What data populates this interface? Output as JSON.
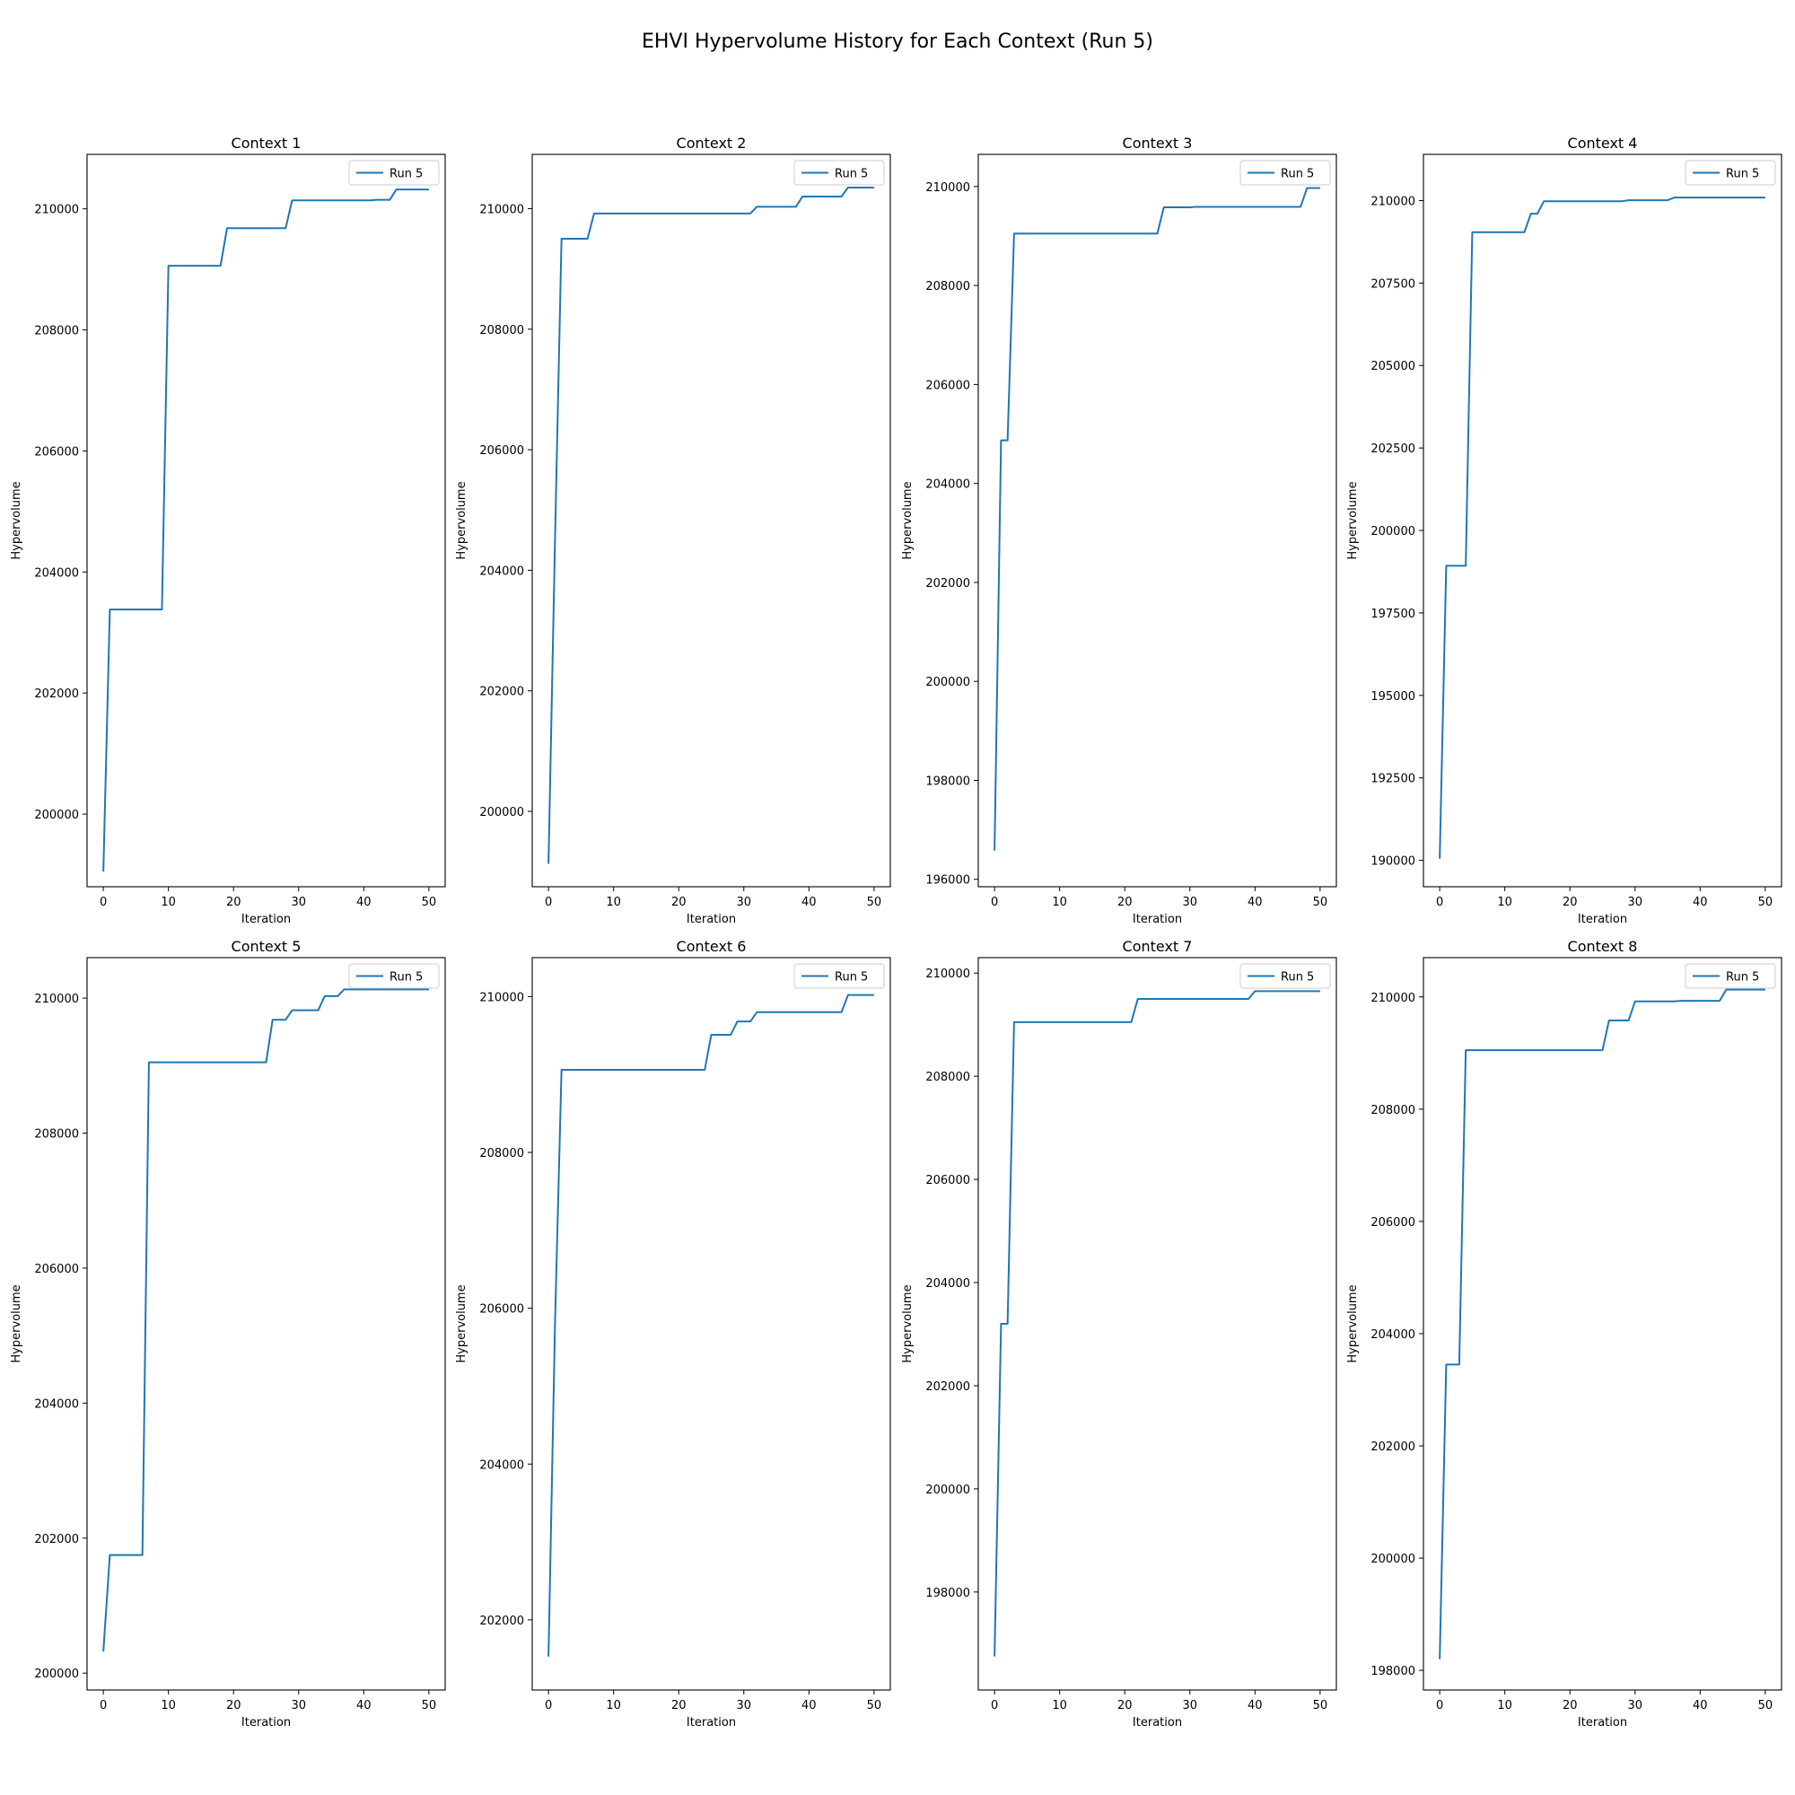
{
  "title": "EHVI Hypervolume History for Each Context (Run 5)",
  "colors": {
    "line": "#1f77b4",
    "axis": "#000000",
    "legend_border": "#cccccc"
  },
  "chart_data": [
    {
      "type": "line",
      "title": "Context 1",
      "xlabel": "Iteration",
      "ylabel": "Hypervolume",
      "xlim": [
        -2.5,
        52.5
      ],
      "ylim": [
        198800,
        210900
      ],
      "xticks": [
        0,
        10,
        20,
        30,
        40,
        50
      ],
      "yticks": [
        200000,
        202000,
        204000,
        206000,
        208000,
        210000
      ],
      "legend_position": "upper right",
      "series": [
        {
          "name": "Run 5",
          "points": [
            [
              0,
              199050
            ],
            [
              1,
              203380
            ],
            [
              9,
              203380
            ],
            [
              10,
              209060
            ],
            [
              18,
              209060
            ],
            [
              19,
              209680
            ],
            [
              28,
              209680
            ],
            [
              29,
              210140
            ],
            [
              41,
              210140
            ],
            [
              42,
              210150
            ],
            [
              44,
              210150
            ],
            [
              45,
              210320
            ],
            [
              50,
              210320
            ]
          ]
        }
      ]
    },
    {
      "type": "line",
      "title": "Context 2",
      "xlabel": "Iteration",
      "ylabel": "Hypervolume",
      "xlim": [
        -2.5,
        52.5
      ],
      "ylim": [
        198750,
        210900
      ],
      "xticks": [
        0,
        10,
        20,
        30,
        40,
        50
      ],
      "yticks": [
        200000,
        202000,
        204000,
        206000,
        208000,
        210000
      ],
      "legend_position": "upper right",
      "series": [
        {
          "name": "Run 5",
          "points": [
            [
              0,
              199130
            ],
            [
              1,
              204500
            ],
            [
              2,
              209500
            ],
            [
              6,
              209500
            ],
            [
              7,
              209920
            ],
            [
              31,
              209920
            ],
            [
              32,
              210030
            ],
            [
              38,
              210030
            ],
            [
              39,
              210200
            ],
            [
              45,
              210200
            ],
            [
              46,
              210350
            ],
            [
              50,
              210350
            ]
          ]
        }
      ]
    },
    {
      "type": "line",
      "title": "Context 3",
      "xlabel": "Iteration",
      "ylabel": "Hypervolume",
      "xlim": [
        -2.5,
        52.5
      ],
      "ylim": [
        195850,
        210650
      ],
      "xticks": [
        0,
        10,
        20,
        30,
        40,
        50
      ],
      "yticks": [
        196000,
        198000,
        200000,
        202000,
        204000,
        206000,
        208000,
        210000
      ],
      "legend_position": "upper right",
      "series": [
        {
          "name": "Run 5",
          "points": [
            [
              0,
              196580
            ],
            [
              1,
              204870
            ],
            [
              2,
              204870
            ],
            [
              3,
              209050
            ],
            [
              25,
              209050
            ],
            [
              26,
              209580
            ],
            [
              30,
              209580
            ],
            [
              31,
              209590
            ],
            [
              47,
              209590
            ],
            [
              48,
              209970
            ],
            [
              50,
              209970
            ]
          ]
        }
      ]
    },
    {
      "type": "line",
      "title": "Context 4",
      "xlabel": "Iteration",
      "ylabel": "Hypervolume",
      "xlim": [
        -2.5,
        52.5
      ],
      "ylim": [
        189200,
        211400
      ],
      "xticks": [
        0,
        10,
        20,
        30,
        40,
        50
      ],
      "yticks": [
        190000,
        192500,
        195000,
        197500,
        200000,
        202500,
        205000,
        207500,
        210000
      ],
      "legend_position": "upper right",
      "series": [
        {
          "name": "Run 5",
          "points": [
            [
              0,
              190050
            ],
            [
              1,
              198930
            ],
            [
              4,
              198930
            ],
            [
              5,
              209040
            ],
            [
              13,
              209040
            ],
            [
              14,
              209600
            ],
            [
              15,
              209600
            ],
            [
              16,
              209980
            ],
            [
              28,
              209980
            ],
            [
              29,
              210010
            ],
            [
              35,
              210010
            ],
            [
              36,
              210090
            ],
            [
              50,
              210090
            ]
          ]
        }
      ]
    },
    {
      "type": "line",
      "title": "Context 5",
      "xlabel": "Iteration",
      "ylabel": "Hypervolume",
      "xlim": [
        -2.5,
        52.5
      ],
      "ylim": [
        199750,
        210600
      ],
      "xticks": [
        0,
        10,
        20,
        30,
        40,
        50
      ],
      "yticks": [
        200000,
        202000,
        204000,
        206000,
        208000,
        210000
      ],
      "legend_position": "upper right",
      "series": [
        {
          "name": "Run 5",
          "points": [
            [
              0,
              200320
            ],
            [
              1,
              201750
            ],
            [
              6,
              201750
            ],
            [
              7,
              209050
            ],
            [
              25,
              209050
            ],
            [
              26,
              209680
            ],
            [
              28,
              209680
            ],
            [
              29,
              209820
            ],
            [
              33,
              209820
            ],
            [
              34,
              210030
            ],
            [
              36,
              210030
            ],
            [
              37,
              210130
            ],
            [
              50,
              210130
            ]
          ]
        }
      ]
    },
    {
      "type": "line",
      "title": "Context 6",
      "xlabel": "Iteration",
      "ylabel": "Hypervolume",
      "xlim": [
        -2.5,
        52.5
      ],
      "ylim": [
        201100,
        210500
      ],
      "xticks": [
        0,
        10,
        20,
        30,
        40,
        50
      ],
      "yticks": [
        202000,
        204000,
        206000,
        208000,
        210000
      ],
      "legend_position": "upper right",
      "series": [
        {
          "name": "Run 5",
          "points": [
            [
              0,
              201530
            ],
            [
              1,
              205800
            ],
            [
              2,
              209060
            ],
            [
              24,
              209060
            ],
            [
              25,
              209510
            ],
            [
              28,
              209510
            ],
            [
              29,
              209680
            ],
            [
              31,
              209680
            ],
            [
              32,
              209800
            ],
            [
              45,
              209800
            ],
            [
              46,
              210020
            ],
            [
              50,
              210020
            ]
          ]
        }
      ]
    },
    {
      "type": "line",
      "title": "Context 7",
      "xlabel": "Iteration",
      "ylabel": "Hypervolume",
      "xlim": [
        -2.5,
        52.5
      ],
      "ylim": [
        196100,
        210300
      ],
      "xticks": [
        0,
        10,
        20,
        30,
        40,
        50
      ],
      "yticks": [
        198000,
        200000,
        202000,
        204000,
        206000,
        208000,
        210000
      ],
      "legend_position": "upper right",
      "series": [
        {
          "name": "Run 5",
          "points": [
            [
              0,
              196750
            ],
            [
              1,
              203200
            ],
            [
              2,
              203200
            ],
            [
              3,
              209050
            ],
            [
              21,
              209050
            ],
            [
              22,
              209500
            ],
            [
              39,
              209500
            ],
            [
              40,
              209650
            ],
            [
              50,
              209650
            ]
          ]
        }
      ]
    },
    {
      "type": "line",
      "title": "Context 8",
      "xlabel": "Iteration",
      "ylabel": "Hypervolume",
      "xlim": [
        -2.5,
        52.5
      ],
      "ylim": [
        197650,
        210700
      ],
      "xticks": [
        0,
        10,
        20,
        30,
        40,
        50
      ],
      "yticks": [
        198000,
        200000,
        202000,
        204000,
        206000,
        208000,
        210000
      ],
      "legend_position": "upper right",
      "series": [
        {
          "name": "Run 5",
          "points": [
            [
              0,
              198200
            ],
            [
              1,
              203450
            ],
            [
              3,
              203450
            ],
            [
              4,
              209050
            ],
            [
              25,
              209050
            ],
            [
              26,
              209580
            ],
            [
              29,
              209580
            ],
            [
              30,
              209920
            ],
            [
              36,
              209920
            ],
            [
              37,
              209930
            ],
            [
              43,
              209930
            ],
            [
              44,
              210130
            ],
            [
              50,
              210130
            ]
          ]
        }
      ]
    }
  ]
}
